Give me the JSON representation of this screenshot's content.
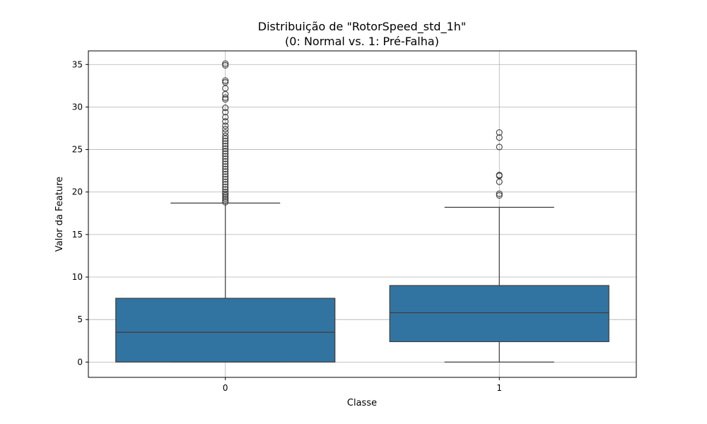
{
  "chart_data": {
    "type": "box",
    "title": "Distribuição de \"RotorSpeed_std_1h\"",
    "subtitle": "(0: Normal vs. 1: Pré-Falha)",
    "xlabel": "Classe",
    "ylabel": "Valor da Feature",
    "ylim": [
      -1.8,
      36.6
    ],
    "yticks": [
      0,
      5,
      10,
      15,
      20,
      25,
      30,
      35
    ],
    "grid": true,
    "box_color": "#3274a1",
    "line_color": "#3d3d3d",
    "categories": [
      "0",
      "1"
    ],
    "boxes": [
      {
        "category": "0",
        "whisker_low": 0,
        "q1": 0,
        "median": 3.5,
        "q3": 7.5,
        "whisker_high": 18.7,
        "outliers": [
          18.8,
          19.0,
          19.2,
          19.4,
          19.6,
          19.8,
          20.0,
          20.3,
          20.6,
          20.9,
          21.2,
          21.5,
          21.8,
          22.1,
          22.4,
          22.7,
          23.0,
          23.3,
          23.6,
          23.9,
          24.2,
          24.5,
          24.8,
          25.1,
          25.4,
          25.7,
          26.0,
          26.3,
          26.6,
          27.0,
          27.4,
          27.8,
          28.3,
          28.8,
          29.4,
          29.9,
          30.9,
          31.1,
          31.5,
          32.2,
          32.9,
          33.1,
          34.9,
          35.1
        ]
      },
      {
        "category": "1",
        "whisker_low": 0,
        "q1": 2.4,
        "median": 5.8,
        "q3": 9.0,
        "whisker_high": 18.2,
        "outliers": [
          19.6,
          19.8,
          21.2,
          21.9,
          22.0,
          25.3,
          26.4,
          27.0
        ]
      }
    ]
  }
}
